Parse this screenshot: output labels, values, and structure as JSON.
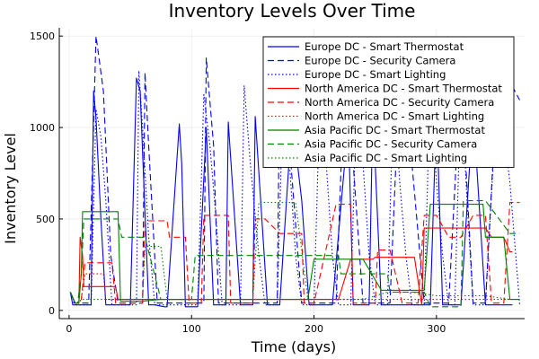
{
  "chart_data": {
    "type": "line",
    "title": "Inventory Levels Over Time",
    "xlabel": "Time (days)",
    "ylabel": "Inventory Level",
    "xlim": [
      -8,
      372
    ],
    "ylim": [
      -45,
      1545
    ],
    "xticks": [
      0,
      100,
      200,
      300
    ],
    "yticks": [
      0,
      500,
      1000,
      1500
    ],
    "grid": true,
    "legend_position": "top-right",
    "series": [
      {
        "name": "Europe DC - Smart Thermostat",
        "color": "#0000ff",
        "dash": "solid",
        "x": [
          1,
          3,
          5,
          10,
          18,
          20,
          22,
          26,
          30,
          35,
          40,
          45,
          50,
          55,
          58,
          65,
          70,
          78,
          80,
          90,
          92,
          95,
          105,
          112,
          118,
          125,
          128,
          130,
          140,
          145,
          150,
          152,
          162,
          170,
          172,
          182,
          190,
          196,
          205,
          212,
          215,
          228,
          232,
          238,
          245,
          248,
          255,
          258,
          262,
          270,
          275,
          280,
          285,
          290,
          295,
          300,
          305,
          310,
          315,
          320,
          330,
          340,
          350,
          362
        ],
        "y": [
          100,
          30,
          30,
          30,
          30,
          1200,
          1050,
          500,
          30,
          30,
          30,
          30,
          30,
          1270,
          1200,
          30,
          30,
          20,
          20,
          1020,
          800,
          20,
          20,
          1000,
          30,
          30,
          30,
          1030,
          30,
          30,
          30,
          1060,
          30,
          30,
          30,
          1060,
          600,
          30,
          30,
          30,
          30,
          1030,
          30,
          30,
          30,
          1100,
          30,
          30,
          30,
          30,
          30,
          30,
          30,
          30,
          30,
          1100,
          30,
          30,
          30,
          30,
          1100,
          30,
          30,
          30
        ]
      },
      {
        "name": "Europe DC - Security Camera",
        "color": "#0000ff",
        "dash": "dashed",
        "x": [
          1,
          4,
          7,
          12,
          16,
          22,
          28,
          34,
          40,
          50,
          60,
          62,
          65,
          72,
          82,
          90,
          100,
          110,
          112,
          118,
          122,
          130,
          140,
          150,
          160,
          170,
          172,
          180,
          190,
          198,
          208,
          218,
          225,
          232,
          240,
          250,
          255,
          262,
          270,
          280,
          290,
          300,
          310,
          320,
          330,
          340,
          350,
          360,
          368
        ],
        "y": [
          100,
          40,
          40,
          40,
          40,
          1500,
          1200,
          300,
          40,
          40,
          40,
          1300,
          900,
          40,
          40,
          40,
          40,
          40,
          1380,
          900,
          40,
          40,
          40,
          40,
          40,
          40,
          1300,
          900,
          40,
          40,
          40,
          40,
          1300,
          800,
          40,
          40,
          40,
          40,
          1300,
          800,
          40,
          40,
          40,
          1300,
          40,
          40,
          1300,
          1250,
          1150
        ]
      },
      {
        "name": "Europe DC - Smart Lighting",
        "color": "#0000ff",
        "dash": "dotted",
        "x": [
          1,
          5,
          10,
          15,
          18,
          22,
          26,
          30,
          35,
          40,
          45,
          50,
          55,
          57,
          60,
          65,
          70,
          75,
          80,
          85,
          90,
          95,
          100,
          105,
          110,
          115,
          120,
          125,
          130,
          135,
          140,
          143,
          148,
          155,
          160,
          165,
          170,
          175,
          180,
          185,
          190,
          195,
          200,
          205,
          210,
          215,
          220,
          225,
          230,
          235,
          240,
          245,
          250,
          255,
          260,
          265,
          270,
          275,
          280,
          285,
          290,
          295,
          300,
          305,
          310,
          315,
          320,
          325,
          330,
          340,
          350,
          360,
          368
        ],
        "y": [
          100,
          30,
          30,
          30,
          30,
          1100,
          950,
          600,
          30,
          30,
          30,
          30,
          30,
          1310,
          1000,
          400,
          30,
          30,
          30,
          30,
          30,
          30,
          30,
          30,
          1180,
          900,
          500,
          30,
          30,
          30,
          30,
          1230,
          800,
          300,
          30,
          30,
          30,
          1250,
          800,
          300,
          30,
          30,
          30,
          1210,
          800,
          300,
          30,
          30,
          30,
          1230,
          800,
          300,
          30,
          30,
          30,
          1220,
          700,
          300,
          30,
          30,
          30,
          1250,
          700,
          300,
          30,
          30,
          1240,
          600,
          30,
          30,
          1250,
          700,
          30
        ]
      },
      {
        "name": "North America DC - Smart Thermostat",
        "color": "#ff0000",
        "dash": "solid",
        "x": [
          1,
          5,
          8,
          9,
          11,
          12,
          15,
          38,
          40,
          45,
          48,
          60,
          85,
          100,
          150,
          170,
          200,
          215,
          220,
          230,
          232,
          248,
          250,
          262,
          270,
          280,
          282,
          288,
          290,
          300,
          315,
          320,
          330,
          340,
          345,
          355,
          360,
          362
        ],
        "y": [
          100,
          40,
          40,
          400,
          300,
          130,
          130,
          130,
          60,
          60,
          60,
          60,
          60,
          60,
          60,
          60,
          60,
          60,
          60,
          280,
          280,
          280,
          290,
          290,
          290,
          290,
          290,
          30,
          450,
          450,
          450,
          450,
          450,
          450,
          400,
          400,
          320,
          320
        ]
      },
      {
        "name": "North America DC - Security Camera",
        "color": "#ff0000",
        "dash": "dashed",
        "x": [
          1,
          5,
          8,
          10,
          13,
          15,
          35,
          38,
          40,
          50,
          60,
          62,
          80,
          82,
          95,
          98,
          108,
          110,
          130,
          132,
          150,
          152,
          160,
          172,
          190,
          192,
          200,
          218,
          230,
          232,
          250,
          252,
          262,
          272,
          285,
          290,
          300,
          310,
          320,
          330,
          340,
          345,
          355,
          360,
          368
        ],
        "y": [
          100,
          40,
          40,
          60,
          260,
          260,
          260,
          40,
          40,
          40,
          40,
          490,
          490,
          400,
          400,
          40,
          40,
          520,
          520,
          40,
          40,
          500,
          500,
          420,
          420,
          40,
          40,
          580,
          580,
          40,
          40,
          330,
          330,
          40,
          40,
          520,
          520,
          400,
          400,
          520,
          520,
          40,
          40,
          590,
          590
        ]
      },
      {
        "name": "North America DC - Smart Lighting",
        "color": "#ff0000",
        "dash": "dotted",
        "x": [
          1,
          5,
          8,
          10,
          13,
          14,
          20,
          28,
          30,
          35,
          40,
          50,
          60,
          70,
          80,
          90,
          100,
          110,
          120,
          130,
          140,
          150,
          160,
          170,
          180,
          190,
          200,
          210,
          220,
          230,
          240,
          250,
          260,
          270,
          280,
          290,
          300,
          310,
          320,
          330,
          340,
          350,
          360,
          368
        ],
        "y": [
          100,
          40,
          40,
          60,
          200,
          200,
          200,
          200,
          60,
          60,
          60,
          60,
          60,
          60,
          60,
          60,
          60,
          60,
          60,
          60,
          60,
          60,
          60,
          60,
          60,
          60,
          60,
          60,
          60,
          60,
          60,
          60,
          60,
          60,
          60,
          60,
          60,
          60,
          60,
          60,
          60,
          60,
          60,
          60
        ]
      },
      {
        "name": "Asia Pacific DC - Smart Thermostat",
        "color": "#008000",
        "dash": "solid",
        "x": [
          1,
          5,
          8,
          10,
          11,
          40,
          42,
          45,
          58,
          60,
          75,
          80,
          85,
          100,
          110,
          120,
          135,
          140,
          160,
          165,
          185,
          195,
          200,
          215,
          220,
          235,
          240,
          255,
          260,
          275,
          280,
          290,
          295,
          300,
          305,
          315,
          320,
          338,
          340,
          355,
          360,
          368
        ],
        "y": [
          100,
          40,
          40,
          200,
          540,
          540,
          50,
          50,
          50,
          50,
          60,
          60,
          60,
          60,
          60,
          60,
          60,
          60,
          60,
          60,
          60,
          60,
          280,
          280,
          280,
          280,
          280,
          110,
          110,
          110,
          110,
          110,
          580,
          580,
          580,
          580,
          580,
          580,
          400,
          400,
          60,
          60
        ]
      },
      {
        "name": "Asia Pacific DC - Security Camera",
        "color": "#008000",
        "dash": "dashed",
        "x": [
          1,
          5,
          7,
          10,
          12,
          40,
          43,
          45,
          60,
          62,
          75,
          80,
          85,
          100,
          103,
          108,
          150,
          155,
          160,
          185,
          190,
          195,
          220,
          222,
          230,
          260,
          262,
          270,
          290,
          295,
          300,
          320,
          322,
          335,
          340,
          360,
          368
        ],
        "y": [
          100,
          40,
          40,
          200,
          500,
          500,
          400,
          400,
          400,
          400,
          60,
          60,
          60,
          60,
          300,
          300,
          300,
          300,
          300,
          300,
          300,
          300,
          300,
          200,
          200,
          200,
          100,
          100,
          100,
          20,
          20,
          20,
          600,
          600,
          600,
          420,
          420
        ]
      },
      {
        "name": "Asia Pacific DC - Smart Lighting",
        "color": "#008000",
        "dash": "dotted",
        "x": [
          1,
          5,
          8,
          10,
          12,
          40,
          45,
          50,
          60,
          62,
          75,
          80,
          85,
          100,
          120,
          140,
          150,
          155,
          180,
          185,
          195,
          200,
          220,
          240,
          260,
          265,
          280,
          300,
          320,
          340,
          360,
          368
        ],
        "y": [
          100,
          40,
          40,
          60,
          60,
          60,
          60,
          60,
          60,
          350,
          350,
          60,
          60,
          60,
          60,
          60,
          60,
          590,
          590,
          590,
          60,
          60,
          60,
          60,
          100,
          100,
          100,
          80,
          80,
          80,
          60,
          60
        ]
      }
    ]
  }
}
